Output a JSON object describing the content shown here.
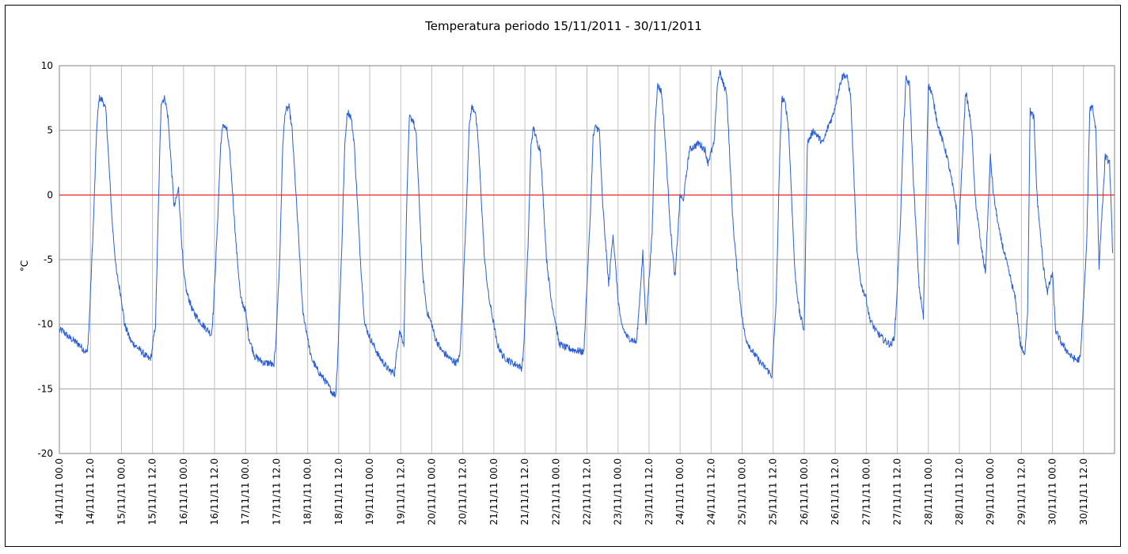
{
  "chart_data": {
    "type": "line",
    "title": "Temperatura periodo 15/11/2011 - 30/11/2011",
    "xlabel": "",
    "ylabel": "°C",
    "ylim": [
      -20,
      10
    ],
    "yticks": [
      10,
      5,
      0,
      -5,
      -10,
      -15,
      -20
    ],
    "reference_line": {
      "y": 0,
      "color": "#ff0000"
    },
    "grid": true,
    "x_tick_labels": [
      "14/11/11 00.0",
      "14/11/11 12.0",
      "15/11/11 00.0",
      "15/11/11 12.0",
      "16/11/11 00.0",
      "16/11/11 12.0",
      "17/11/11 00.0",
      "17/11/11 12.0",
      "18/11/11 00.0",
      "18/11/11 12.0",
      "19/11/11 00.0",
      "19/11/11 12.0",
      "20/11/11 00.0",
      "20/11/11 12.0",
      "21/11/11 00.0",
      "21/11/11 12.0",
      "22/11/11 00.0",
      "22/11/11 12.0",
      "23/11/11 00.0",
      "23/11/11 12.0",
      "24/11/11 00.0",
      "24/11/11 12.0",
      "25/11/11 00.0",
      "25/11/11 12.0",
      "26/11/11 00.0",
      "26/11/11 12.0",
      "27/11/11 00.0",
      "27/11/11 12.0",
      "28/11/11 00.0",
      "28/11/11 12.0",
      "29/11/11 00.0",
      "29/11/11 12.0",
      "30/11/11 00.0",
      "30/11/11 12.0"
    ],
    "series": [
      {
        "color": "#2b5fd9",
        "x": [
          0.0,
          0.05,
          0.15,
          0.3,
          0.4,
          0.45,
          0.48,
          0.55,
          0.6,
          0.64,
          0.7,
          0.75,
          0.85,
          0.92,
          1.0,
          1.05,
          1.15,
          1.3,
          1.4,
          1.45,
          1.48,
          1.55,
          1.6,
          1.64,
          1.7,
          1.75,
          1.85,
          1.92,
          2.0,
          2.05,
          2.15,
          2.3,
          2.4,
          2.45,
          2.48,
          2.55,
          2.6,
          2.64,
          2.7,
          2.75,
          2.85,
          2.92,
          3.0,
          3.05,
          3.15,
          3.3,
          3.4,
          3.45,
          3.48,
          3.55,
          3.6,
          3.64,
          3.7,
          3.75,
          3.85,
          3.92,
          4.0,
          4.05,
          4.15,
          4.3,
          4.4,
          4.45,
          4.48,
          4.55,
          4.6,
          4.64,
          4.7,
          4.75,
          4.85,
          4.92,
          5.0,
          5.05,
          5.15,
          5.3,
          5.4,
          5.45,
          5.48,
          5.55,
          5.6,
          5.64,
          5.7,
          5.75,
          5.85,
          5.92,
          6.0,
          6.05,
          6.15,
          6.3,
          6.4,
          6.45,
          6.48,
          6.55,
          6.6,
          6.64,
          6.7,
          6.75,
          6.85,
          6.92,
          7.0,
          7.05,
          7.15,
          7.3,
          7.4,
          7.45,
          7.48,
          7.55,
          7.6,
          7.64,
          7.7,
          7.75,
          7.85,
          7.92,
          8.0,
          8.05,
          8.15,
          8.3,
          8.4,
          8.45,
          8.48,
          8.55,
          8.6,
          8.64,
          8.7,
          8.75,
          8.85,
          8.92,
          9.0,
          9.05,
          9.15,
          9.3,
          9.4,
          9.45,
          9.48,
          9.55,
          9.6,
          9.64,
          9.7,
          9.75,
          9.85,
          9.92,
          10.0,
          10.05,
          10.15,
          10.3,
          10.4,
          10.45,
          10.48,
          10.55,
          10.6,
          10.64,
          10.7,
          10.75,
          10.85,
          10.92,
          11.0,
          11.05,
          11.15,
          11.3,
          11.4,
          11.45,
          11.48,
          11.55,
          11.6,
          11.64,
          11.7,
          11.75,
          11.85,
          11.92,
          12.0,
          12.05,
          12.15,
          12.3,
          12.4,
          12.45,
          12.48,
          12.55,
          12.6,
          12.64,
          12.7,
          12.75,
          12.85,
          12.92,
          13.0,
          13.05,
          13.15,
          13.3,
          13.4,
          13.45,
          13.48,
          13.55,
          13.6,
          13.64,
          13.7,
          13.75,
          13.85,
          13.92,
          14.0,
          14.05,
          14.15,
          14.3,
          14.4,
          14.45,
          14.48,
          14.55,
          14.6,
          14.64,
          14.7,
          14.75,
          14.85,
          14.92,
          15.0,
          15.05,
          15.15,
          15.3,
          15.4,
          15.45,
          15.48,
          15.55,
          15.6,
          15.64,
          15.7,
          15.75,
          15.85,
          15.92,
          16.0,
          16.05,
          16.15,
          16.3,
          16.4,
          16.45,
          16.48,
          16.55,
          16.6,
          16.64,
          16.7,
          16.75,
          16.85,
          16.92,
          16.97
        ],
        "y": [
          -10.5,
          -10.5,
          -11.0,
          -11.5,
          -12.0,
          -12.2,
          -10.0,
          -2.0,
          5.0,
          7.5,
          7.3,
          6.5,
          -2.0,
          -6.0,
          -8.0,
          -10.0,
          -11.3,
          -12.0,
          -12.5,
          -12.7,
          -12.5,
          -10.0,
          0.0,
          7.2,
          7.5,
          6.0,
          -1.0,
          0.5,
          -6.0,
          -7.5,
          -9.0,
          -10.0,
          -10.5,
          -10.8,
          -9.0,
          -2.0,
          4.0,
          5.5,
          5.0,
          3.0,
          -4.0,
          -8.0,
          -9.0,
          -11.0,
          -12.5,
          -13.0,
          -13.0,
          -13.3,
          -12.0,
          -5.0,
          4.0,
          6.5,
          6.8,
          5.0,
          -3.0,
          -9.0,
          -11.0,
          -12.5,
          -13.5,
          -14.5,
          -15.3,
          -15.5,
          -13.0,
          -4.0,
          4.0,
          6.5,
          6.0,
          4.0,
          -5.0,
          -10.0,
          -11.0,
          -11.5,
          -12.5,
          -13.5,
          -13.8,
          -11.5,
          -10.5,
          -11.5,
          0.0,
          6.0,
          5.8,
          4.5,
          -6.0,
          -9.0,
          -10.0,
          -11.0,
          -12.0,
          -12.7,
          -13.0,
          -12.5,
          -10.0,
          -2.0,
          5.0,
          6.8,
          6.5,
          4.0,
          -5.0,
          -8.0,
          -10.0,
          -11.5,
          -12.5,
          -13.0,
          -13.2,
          -13.4,
          -12.0,
          -4.0,
          4.0,
          5.2,
          4.0,
          3.5,
          -5.0,
          -8.0,
          -10.0,
          -11.5,
          -11.8,
          -12.0,
          -12.1,
          -12.2,
          -9.0,
          -2.0,
          4.5,
          5.3,
          5.0,
          -0.5,
          -7.0,
          -3.0,
          -8.0,
          -10.0,
          -11.0,
          -11.4,
          -4.5,
          -10.0,
          -8.0,
          -3.0,
          6.0,
          8.5,
          8.0,
          5.0,
          -3.0,
          -6.5,
          0.0,
          -0.5,
          3.5,
          4.0,
          3.5,
          2.5,
          3.0,
          4.0,
          8.5,
          9.5,
          8.5,
          8.0,
          -2.0,
          -6.0,
          -9.5,
          -11.0,
          -12.0,
          -13.0,
          -13.5,
          -13.8,
          -14.0,
          -8.0,
          2.0,
          7.5,
          7.0,
          5.0,
          -6.0,
          -9.0,
          -10.5,
          4.0,
          5.0,
          4.0,
          5.5,
          6.0,
          6.5,
          8.0,
          9.0,
          9.3,
          9.0,
          7.5,
          -4.5,
          -7.0,
          -8.0,
          -9.5,
          -10.5,
          -11.3,
          -11.6,
          -11.0,
          -9.0,
          -2.0,
          5.0,
          9.0,
          8.5,
          2.0,
          -7.0,
          -9.5,
          8.5,
          8.0,
          5.5,
          3.0,
          0.5,
          -1.0,
          -4.0,
          3.0,
          8.0,
          7.0,
          5.0,
          0.0,
          -4.0,
          -6.0,
          3.0,
          0.0,
          -3.0,
          -6.0,
          -8.0,
          -10.0,
          -11.5,
          -12.5,
          -9.0,
          6.5,
          6.0,
          0.0,
          -5.5,
          -7.5,
          -6.0,
          -10.5,
          -11.5,
          -12.5,
          -12.8,
          -12.6,
          -10.0,
          -4.0,
          6.5,
          7.0,
          5.0,
          -5.5,
          3.0,
          2.5,
          -4.5
        ]
      }
    ]
  }
}
